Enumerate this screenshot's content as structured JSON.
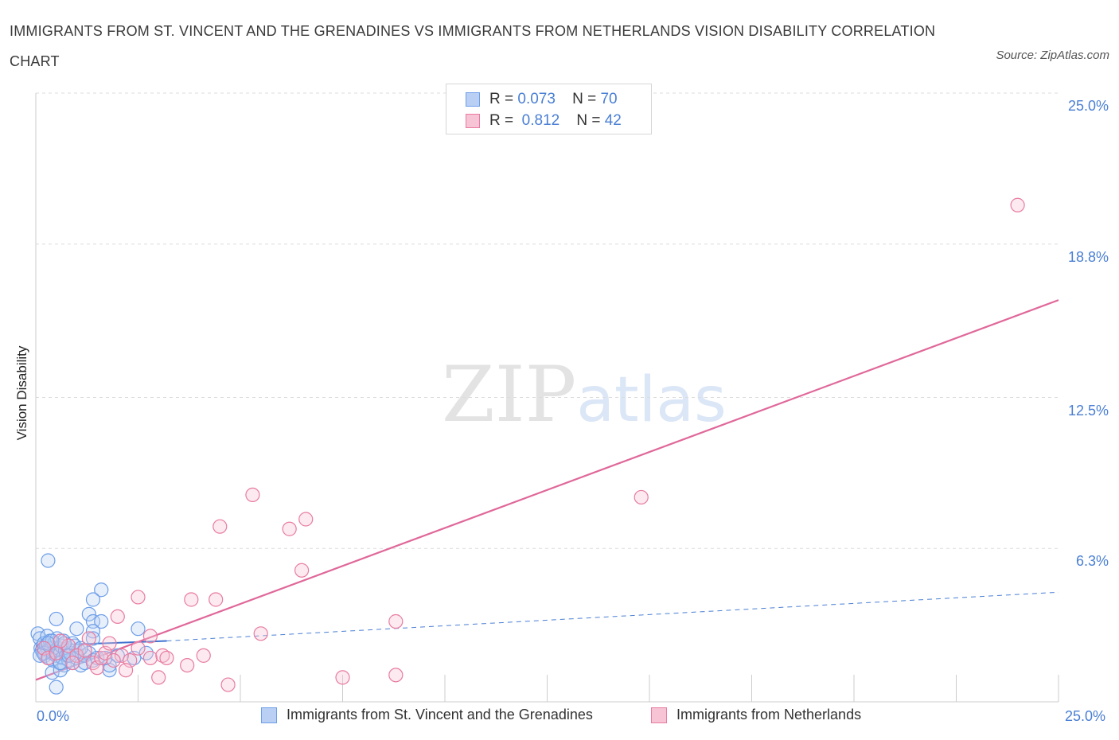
{
  "title": "IMMIGRANTS FROM ST. VINCENT AND THE GRENADINES VS IMMIGRANTS FROM NETHERLANDS VISION DISABILITY CORRELATION CHART",
  "source": "Source: ZipAtlas.com",
  "watermark": {
    "zip": "ZIP",
    "atlas": "atlas"
  },
  "legend": {
    "rows": [
      {
        "r_label": "R =",
        "r_value": "0.073",
        "n_label": "N =",
        "n_value": "70"
      },
      {
        "r_label": "R =",
        "r_value": "0.812",
        "n_label": "N =",
        "n_value": "42"
      }
    ]
  },
  "bottom_legend": [
    "Immigrants from St. Vincent and the Grenadines",
    "Immigrants from Netherlands"
  ],
  "colors": {
    "blue": "#6d9ee8",
    "blue_fill": "#b9d0f4",
    "pink": "#e87ba1",
    "pink_fill": "#f6c4d4",
    "accent": "#4a7fd4"
  },
  "chart_data": {
    "type": "scatter",
    "title": "IMMIGRANTS FROM ST. VINCENT AND THE GRENADINES VS IMMIGRANTS FROM NETHERLANDS VISION DISABILITY CORRELATION CHART",
    "xlabel": "",
    "ylabel": "Vision Disability",
    "xlim": [
      0,
      25
    ],
    "ylim": [
      0,
      25
    ],
    "x_tick_labels": [
      "0.0%",
      "25.0%"
    ],
    "y_tick_labels": [
      "6.3%",
      "12.5%",
      "18.8%",
      "25.0%"
    ],
    "y_ticks": [
      6.3,
      12.5,
      18.8,
      25.0
    ],
    "grid": true,
    "legend_position": "top-center",
    "series": [
      {
        "name": "Immigrants from St. Vincent and the Grenadines",
        "color": "#6d9ee8",
        "trend": {
          "x": [
            0,
            3.2
          ],
          "y": [
            2.3,
            2.5
          ],
          "extended_to": [
            25,
            4.5
          ]
        },
        "points": [
          [
            0.05,
            2.8
          ],
          [
            0.1,
            2.6
          ],
          [
            0.12,
            2.2
          ],
          [
            0.15,
            2.1
          ],
          [
            0.18,
            2.0
          ],
          [
            0.2,
            2.4
          ],
          [
            0.22,
            1.9
          ],
          [
            0.25,
            2.3
          ],
          [
            0.28,
            2.7
          ],
          [
            0.3,
            2.1
          ],
          [
            0.32,
            1.8
          ],
          [
            0.35,
            2.5
          ],
          [
            0.38,
            2.2
          ],
          [
            0.4,
            2.0
          ],
          [
            0.42,
            1.7
          ],
          [
            0.45,
            2.4
          ],
          [
            0.48,
            2.1
          ],
          [
            0.5,
            1.9
          ],
          [
            0.52,
            2.6
          ],
          [
            0.55,
            2.2
          ],
          [
            0.58,
            1.6
          ],
          [
            0.6,
            2.0
          ],
          [
            0.62,
            2.3
          ],
          [
            0.65,
            1.8
          ],
          [
            0.68,
            2.5
          ],
          [
            0.7,
            1.5
          ],
          [
            0.72,
            2.1
          ],
          [
            0.75,
            1.9
          ],
          [
            0.78,
            2.2
          ],
          [
            0.8,
            1.7
          ],
          [
            0.85,
            2.0
          ],
          [
            0.9,
            1.6
          ],
          [
            0.95,
            2.3
          ],
          [
            1.0,
            1.8
          ],
          [
            1.05,
            2.1
          ],
          [
            1.1,
            1.5
          ],
          [
            1.2,
            1.9
          ],
          [
            1.3,
            2.0
          ],
          [
            1.4,
            1.7
          ],
          [
            1.5,
            1.8
          ],
          [
            0.3,
            5.8
          ],
          [
            1.6,
            4.6
          ],
          [
            1.4,
            4.2
          ],
          [
            0.5,
            3.4
          ],
          [
            1.3,
            3.6
          ],
          [
            1.4,
            3.3
          ],
          [
            1.6,
            3.3
          ],
          [
            1.0,
            3.0
          ],
          [
            1.4,
            2.9
          ],
          [
            1.4,
            2.6
          ],
          [
            2.5,
            3.0
          ],
          [
            0.4,
            1.2
          ],
          [
            0.5,
            0.6
          ],
          [
            1.8,
            1.3
          ],
          [
            0.6,
            1.3
          ],
          [
            2.4,
            1.8
          ],
          [
            2.7,
            2.0
          ],
          [
            1.8,
            1.5
          ],
          [
            1.2,
            1.6
          ],
          [
            0.9,
            2.4
          ],
          [
            0.7,
            2.4
          ],
          [
            0.4,
            2.5
          ],
          [
            0.2,
            2.0
          ],
          [
            0.1,
            1.9
          ],
          [
            0.3,
            2.4
          ],
          [
            0.6,
            1.6
          ],
          [
            0.8,
            1.9
          ],
          [
            1.1,
            2.2
          ],
          [
            1.7,
            1.8
          ],
          [
            2.0,
            1.9
          ]
        ]
      },
      {
        "name": "Immigrants from Netherlands",
        "color": "#e87ba1",
        "trend": {
          "x": [
            0,
            25
          ],
          "y": [
            0.9,
            16.5
          ]
        },
        "points": [
          [
            24.0,
            20.4
          ],
          [
            14.8,
            8.4
          ],
          [
            5.3,
            8.5
          ],
          [
            4.5,
            7.2
          ],
          [
            6.2,
            7.1
          ],
          [
            6.6,
            7.5
          ],
          [
            6.5,
            5.4
          ],
          [
            2.5,
            4.3
          ],
          [
            3.8,
            4.2
          ],
          [
            4.4,
            4.2
          ],
          [
            5.5,
            2.8
          ],
          [
            8.8,
            3.3
          ],
          [
            2.0,
            3.5
          ],
          [
            0.2,
            2.2
          ],
          [
            0.3,
            1.8
          ],
          [
            0.5,
            2.0
          ],
          [
            0.8,
            2.3
          ],
          [
            1.0,
            1.9
          ],
          [
            1.2,
            2.1
          ],
          [
            1.4,
            1.6
          ],
          [
            1.5,
            1.4
          ],
          [
            1.6,
            1.8
          ],
          [
            1.7,
            2.0
          ],
          [
            1.8,
            2.4
          ],
          [
            2.1,
            1.9
          ],
          [
            2.3,
            1.7
          ],
          [
            2.5,
            2.2
          ],
          [
            2.8,
            1.8
          ],
          [
            2.8,
            2.7
          ],
          [
            3.1,
            1.9
          ],
          [
            3.0,
            1.0
          ],
          [
            3.7,
            1.5
          ],
          [
            4.1,
            1.9
          ],
          [
            4.7,
            0.7
          ],
          [
            7.5,
            1.0
          ],
          [
            8.8,
            1.1
          ],
          [
            1.3,
            2.6
          ],
          [
            0.6,
            2.5
          ],
          [
            1.9,
            1.7
          ],
          [
            2.2,
            1.3
          ],
          [
            3.2,
            1.8
          ],
          [
            0.9,
            1.6
          ]
        ]
      }
    ]
  }
}
